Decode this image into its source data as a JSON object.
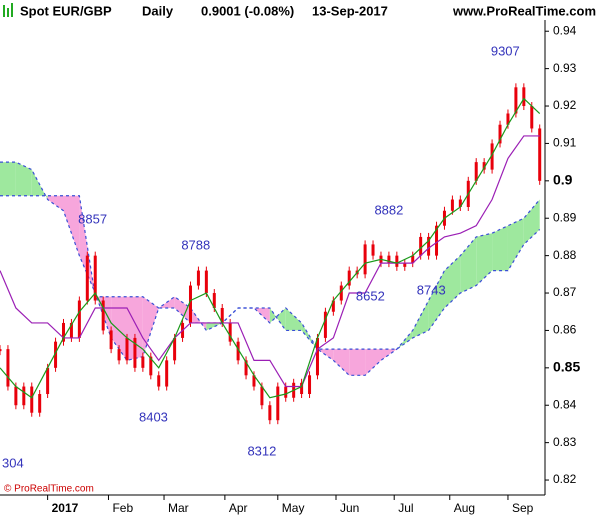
{
  "chart_data": {
    "type": "ichimoku",
    "title": "Spot EUR/GBP",
    "period": "Daily",
    "last": "0.9001 (-0.08%)",
    "date": "13-Sep-2017",
    "site": "www.ProRealTime.com",
    "copyright": "© ProRealTime.com",
    "xlim": [
      0,
      206
    ],
    "ylim": [
      0.816,
      0.943
    ],
    "xticks": [
      {
        "value": 18,
        "label": "2017"
      },
      {
        "value": 41,
        "label": "Feb"
      },
      {
        "value": 62,
        "label": "Mar"
      },
      {
        "value": 85,
        "label": "Apr"
      },
      {
        "value": 105,
        "label": "May"
      },
      {
        "value": 127,
        "label": "Jun"
      },
      {
        "value": 149,
        "label": "Jul"
      },
      {
        "value": 170,
        "label": "Aug"
      },
      {
        "value": 192,
        "label": "Sep"
      }
    ],
    "yticks": [
      0.94,
      0.93,
      0.92,
      0.91,
      0.9,
      0.89,
      0.88,
      0.87,
      0.86,
      0.85,
      0.84,
      0.83,
      0.82
    ],
    "emphasized_yticks": [
      4,
      9
    ],
    "price": {
      "color": "#e8000b",
      "x": [
        0,
        3,
        6,
        9,
        12,
        15,
        18,
        21,
        24,
        27,
        30,
        33,
        36,
        39,
        42,
        45,
        48,
        51,
        54,
        57,
        60,
        63,
        66,
        69,
        72,
        75,
        78,
        81,
        84,
        87,
        90,
        93,
        96,
        99,
        102,
        105,
        108,
        111,
        114,
        117,
        120,
        123,
        126,
        129,
        132,
        135,
        138,
        141,
        144,
        147,
        150,
        153,
        156,
        159,
        162,
        165,
        168,
        171,
        174,
        177,
        180,
        183,
        186,
        189,
        192,
        195,
        198,
        201,
        204
      ],
      "values": [
        0.855,
        0.845,
        0.84,
        0.845,
        0.838,
        0.843,
        0.85,
        0.857,
        0.862,
        0.858,
        0.868,
        0.88,
        0.868,
        0.86,
        0.855,
        0.852,
        0.858,
        0.85,
        0.853,
        0.848,
        0.845,
        0.852,
        0.858,
        0.862,
        0.872,
        0.876,
        0.87,
        0.866,
        0.862,
        0.857,
        0.852,
        0.848,
        0.845,
        0.84,
        0.836,
        0.845,
        0.842,
        0.846,
        0.843,
        0.848,
        0.858,
        0.865,
        0.868,
        0.872,
        0.876,
        0.875,
        0.883,
        0.88,
        0.878,
        0.88,
        0.877,
        0.878,
        0.88,
        0.885,
        0.88,
        0.888,
        0.892,
        0.895,
        0.893,
        0.9,
        0.905,
        0.903,
        0.91,
        0.915,
        0.918,
        0.925,
        0.92,
        0.914,
        0.9
      ]
    },
    "lines_x": [
      0,
      6,
      12,
      18,
      24,
      30,
      36,
      42,
      48,
      54,
      60,
      66,
      72,
      78,
      84,
      90,
      96,
      102,
      108,
      114,
      120,
      126,
      132,
      138,
      144,
      150,
      156,
      162,
      168,
      174,
      180,
      186,
      192,
      198,
      204
    ],
    "tenkan": {
      "color": "#1a9a1a",
      "values": [
        0.85,
        0.845,
        0.842,
        0.85,
        0.858,
        0.865,
        0.87,
        0.862,
        0.858,
        0.855,
        0.85,
        0.858,
        0.868,
        0.87,
        0.862,
        0.855,
        0.848,
        0.842,
        0.843,
        0.845,
        0.858,
        0.868,
        0.873,
        0.878,
        0.879,
        0.878,
        0.88,
        0.884,
        0.89,
        0.893,
        0.9,
        0.907,
        0.915,
        0.922,
        0.918
      ]
    },
    "kijun": {
      "color": "#9b1fb5",
      "values": [
        0.876,
        0.866,
        0.862,
        0.862,
        0.858,
        0.858,
        0.866,
        0.866,
        0.866,
        0.858,
        0.852,
        0.858,
        0.862,
        0.862,
        0.862,
        0.862,
        0.852,
        0.852,
        0.845,
        0.845,
        0.855,
        0.858,
        0.87,
        0.87,
        0.878,
        0.878,
        0.878,
        0.882,
        0.885,
        0.886,
        0.888,
        0.895,
        0.906,
        0.912,
        0.912
      ]
    },
    "span_a": {
      "values": [
        0.905,
        0.905,
        0.903,
        0.895,
        0.892,
        0.88,
        0.87,
        0.858,
        0.852,
        0.853,
        0.866,
        0.866,
        0.862,
        0.862,
        0.862,
        0.866,
        0.866,
        0.862,
        0.866,
        0.862,
        0.855,
        0.852,
        0.848,
        0.848,
        0.852,
        0.855,
        0.86,
        0.868,
        0.876,
        0.88,
        0.885,
        0.886,
        0.888,
        0.89,
        0.895
      ]
    },
    "span_b": {
      "values": [
        0.896,
        0.896,
        0.896,
        0.896,
        0.896,
        0.896,
        0.869,
        0.869,
        0.869,
        0.869,
        0.866,
        0.869,
        0.866,
        0.86,
        0.862,
        0.866,
        0.866,
        0.866,
        0.86,
        0.86,
        0.855,
        0.855,
        0.855,
        0.855,
        0.855,
        0.855,
        0.858,
        0.86,
        0.866,
        0.87,
        0.872,
        0.876,
        0.876,
        0.883,
        0.887
      ]
    },
    "cloud_colors": {
      "up": "#9ee89e",
      "down": "#f7a6dc",
      "edge": "#3a4fd6"
    },
    "annotations": [
      {
        "text": "304",
        "x": 0,
        "y": 0.828,
        "place": "below"
      },
      {
        "text": "8857",
        "x": 35,
        "y": 0.8857,
        "place": "above"
      },
      {
        "text": "8403",
        "x": 58,
        "y": 0.8403,
        "place": "below"
      },
      {
        "text": "8788",
        "x": 74,
        "y": 0.8788,
        "place": "above"
      },
      {
        "text": "8312",
        "x": 99,
        "y": 0.8312,
        "place": "below"
      },
      {
        "text": "8652",
        "x": 140,
        "y": 0.8652,
        "place": "above"
      },
      {
        "text": "8882",
        "x": 147,
        "y": 0.8882,
        "place": "above"
      },
      {
        "text": "8743",
        "x": 163,
        "y": 0.8743,
        "place": "below"
      },
      {
        "text": "9307",
        "x": 191,
        "y": 0.9307,
        "place": "above"
      }
    ]
  }
}
